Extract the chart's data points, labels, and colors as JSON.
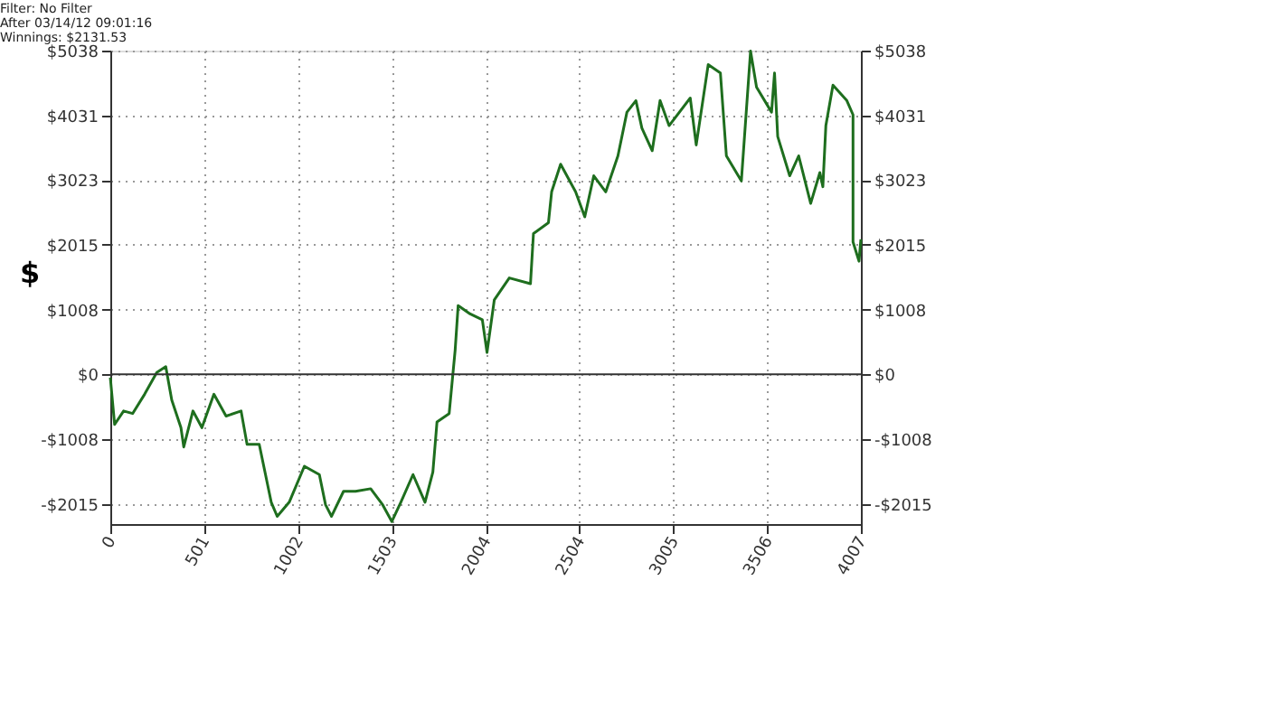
{
  "chart_data": {
    "type": "line",
    "ylabel": "$",
    "annotations": [
      "Filter: No Filter",
      "After 03/14/12 09:01:16",
      "Winnings: $2131.53"
    ],
    "series": [
      {
        "color": "#1e6e1e",
        "x": [
          0,
          23,
          71,
          119,
          183,
          248,
          296,
          328,
          377,
          392,
          441,
          489,
          553,
          618,
          698,
          730,
          795,
          859,
          891,
          955,
          1036,
          1116,
          1149,
          1181,
          1245,
          1309,
          1390,
          1454,
          1503,
          1551,
          1616,
          1680,
          1722,
          1744,
          1809,
          1841,
          1857,
          1921,
          1986,
          2011,
          2050,
          2130,
          2243,
          2259,
          2339,
          2356,
          2404,
          2484,
          2533,
          2581,
          2645,
          2710,
          2758,
          2806,
          2838,
          2893,
          2935,
          2983,
          3096,
          3128,
          3192,
          3257,
          3289,
          3369,
          3418,
          3450,
          3530,
          3546,
          3563,
          3627,
          3675,
          3739,
          3788,
          3804,
          3820,
          3858,
          3932,
          3965,
          3965,
          3997,
          4007
        ],
        "values": [
          -50,
          -780,
          -570,
          -610,
          -310,
          30,
          120,
          -400,
          -830,
          -1130,
          -570,
          -830,
          -310,
          -650,
          -570,
          -1090,
          -1090,
          -1990,
          -2210,
          -1990,
          -1430,
          -1560,
          -2030,
          -2210,
          -1820,
          -1820,
          -1780,
          -2030,
          -2290,
          -1990,
          -1560,
          -1990,
          -1520,
          -740,
          -610,
          380,
          1070,
          940,
          850,
          340,
          1160,
          1500,
          1410,
          2190,
          2360,
          2840,
          3270,
          2840,
          2450,
          3090,
          2840,
          3400,
          4080,
          4260,
          3830,
          3480,
          4260,
          3870,
          4300,
          3570,
          4820,
          4690,
          3400,
          3010,
          5030,
          4470,
          4080,
          4690,
          3700,
          3090,
          3400,
          2660,
          3140,
          2920,
          3870,
          4500,
          4260,
          4040,
          2060,
          1760,
          2100
        ]
      }
    ],
    "xlim": [
      0,
      4007
    ],
    "xticks": [
      0,
      501,
      1002,
      1503,
      2004,
      2504,
      3005,
      3506,
      4007
    ],
    "ylim": [
      -2330,
      5038
    ],
    "yticks": [
      {
        "value": -2015,
        "label": "-$2015"
      },
      {
        "value": -1008,
        "label": "-$1008"
      },
      {
        "value": 0,
        "label": "$0"
      },
      {
        "value": 1008,
        "label": "$1008"
      },
      {
        "value": 2015,
        "label": "$2015"
      },
      {
        "value": 3023,
        "label": "$3023"
      },
      {
        "value": 4031,
        "label": "$4031"
      },
      {
        "value": 5038,
        "label": "$5038"
      }
    ],
    "y2lim": [
      -2330,
      5038
    ],
    "y2ticks": [
      {
        "value": -2015,
        "label": "-$2015"
      },
      {
        "value": -1008,
        "label": "-$1008"
      },
      {
        "value": 0,
        "label": "$0"
      },
      {
        "value": 1008,
        "label": "$1008"
      },
      {
        "value": 2015,
        "label": "$2015"
      },
      {
        "value": 3023,
        "label": "$3023"
      },
      {
        "value": 4031,
        "label": "$4031"
      },
      {
        "value": 5038,
        "label": "$5038"
      }
    ],
    "ref_lines": [
      {
        "axis": "y",
        "value": 0,
        "color": "#333333"
      }
    ],
    "grid": true,
    "marker": "none",
    "line_style": "solid"
  }
}
